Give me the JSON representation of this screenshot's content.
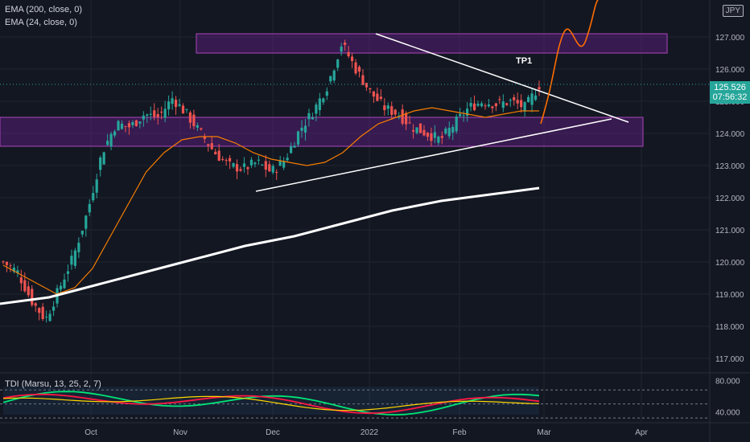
{
  "legend": {
    "ema200": "EMA (200, close, 0)",
    "ema24": "EMA (24, close, 0)",
    "tdi": "TDI (Marsu, 13, 25, 2, 7)"
  },
  "currency_badge": "JPY",
  "last_price": {
    "value": "125.526",
    "countdown": "07:56:32"
  },
  "annotation_tp1": "TP1",
  "colors": {
    "background": "#131722",
    "up": "#26a69a",
    "down": "#ef5350",
    "ema24": "#f57c00",
    "ema200": "#ffffff",
    "zone_fill": "#7b1fa2",
    "projection": "#ff6d00"
  },
  "chart_data": [
    {
      "type": "candlestick",
      "title": "",
      "x_ticks": [
        "Oct",
        "Nov",
        "Dec",
        "2022",
        "Feb",
        "Mar",
        "Apr"
      ],
      "y_ticks": [
        "117.000",
        "118.000",
        "119.000",
        "120.000",
        "121.000",
        "122.000",
        "123.000",
        "124.000",
        "125.000",
        "126.000",
        "127.000"
      ],
      "ylim": [
        116.6,
        128.2
      ],
      "ohlc_sample_closes": [
        120.0,
        119.7,
        118.8,
        118.2,
        119.2,
        120.2,
        121.6,
        123.4,
        124.3,
        124.2,
        124.6,
        124.5,
        125.1,
        124.6,
        124.0,
        123.4,
        123.0,
        122.9,
        123.1,
        122.8,
        123.2,
        124.1,
        124.7,
        125.5,
        126.8,
        126.0,
        125.3,
        124.8,
        124.6,
        124.2,
        124.0,
        123.8,
        124.3,
        124.8,
        125.0,
        124.9,
        125.0,
        124.8,
        125.5
      ],
      "ema24": [
        119.9,
        119.6,
        119.3,
        119.0,
        119.2,
        119.8,
        120.8,
        121.8,
        122.8,
        123.4,
        123.8,
        123.9,
        123.9,
        123.7,
        123.4,
        123.2,
        123.1,
        123.0,
        123.1,
        123.4,
        123.9,
        124.3,
        124.5,
        124.7,
        124.8,
        124.7,
        124.6,
        124.5,
        124.6,
        124.7,
        124.7
      ],
      "ema200": [
        118.7,
        118.9,
        119.3,
        119.7,
        120.1,
        120.5,
        120.8,
        121.2,
        121.6,
        121.9,
        122.1,
        122.3
      ],
      "zones": [
        {
          "name": "upper supply zone",
          "y_range": [
            126.5,
            127.1
          ]
        },
        {
          "name": "middle zone",
          "y_range": [
            123.6,
            124.5
          ]
        }
      ],
      "triangle_lines": [
        {
          "name": "descending resistance",
          "from": [
            127.1
          ],
          "to": [
            124.4
          ]
        },
        {
          "name": "ascending support",
          "from": [
            122.2
          ],
          "to": [
            124.4
          ]
        }
      ],
      "last_price": 125.526,
      "projection_target": 128.2
    },
    {
      "type": "line",
      "title": "TDI (Marsu, 13, 25, 2, 7)",
      "y_ticks": [
        "40.000",
        "80.000"
      ],
      "ylim": [
        30,
        90
      ],
      "levels": [
        32,
        50,
        68
      ]
    }
  ]
}
